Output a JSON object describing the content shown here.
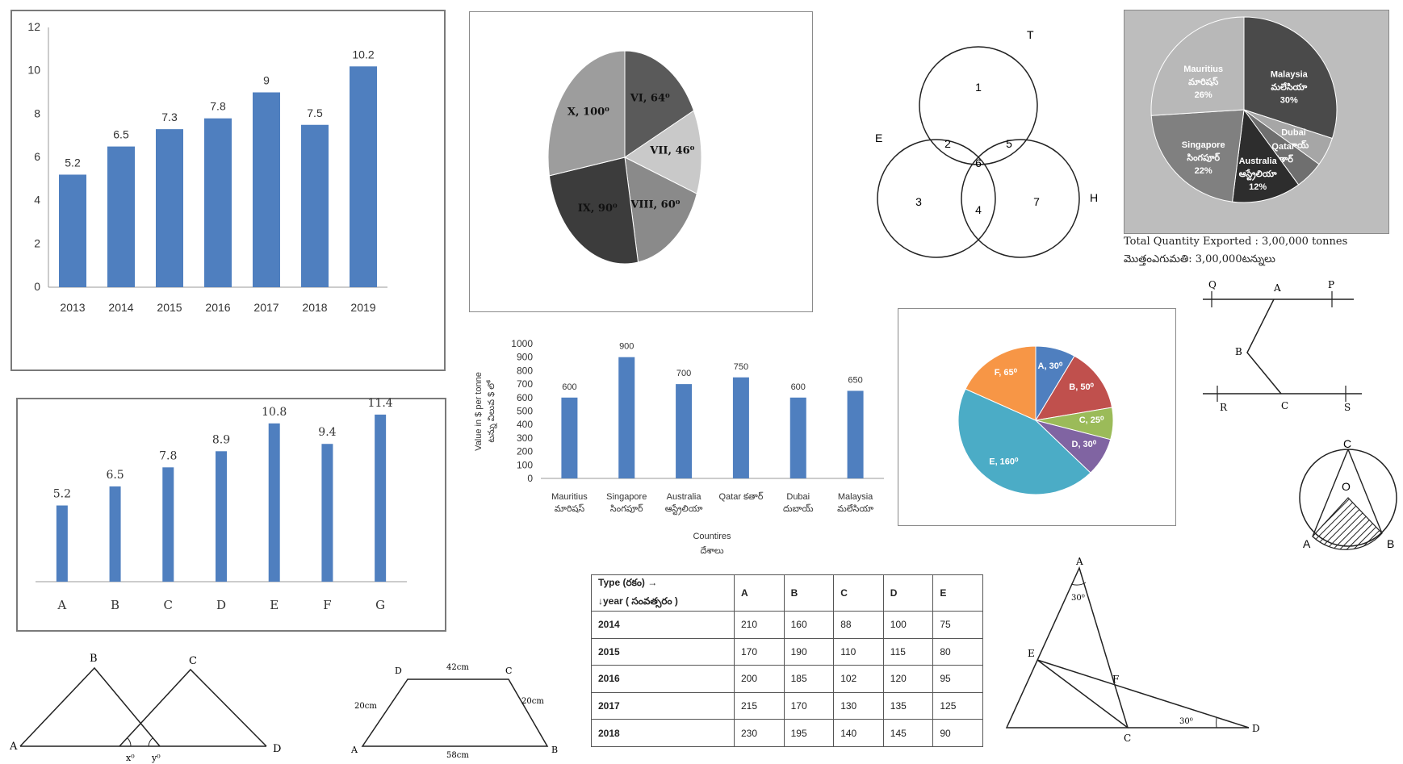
{
  "chart_data": [
    {
      "type": "bar",
      "categories": [
        "2013",
        "2014",
        "2015",
        "2016",
        "2017",
        "2018",
        "2019"
      ],
      "values": [
        5.2,
        6.5,
        7.3,
        7.8,
        9,
        7.5,
        10.2
      ],
      "value_labels": [
        "5.2",
        "6.5",
        "7.3",
        "7.8",
        "9",
        "7.5",
        "10.2"
      ],
      "ylim": [
        0,
        12
      ],
      "yticks": [
        "0",
        "2",
        "4",
        "6",
        "8",
        "10",
        "12"
      ],
      "color": "#4f7fbf"
    },
    {
      "type": "pie",
      "slices": [
        {
          "label": "VI, 64⁰",
          "value": 64,
          "color": "#5a5a5a"
        },
        {
          "label": "VII, 46⁰",
          "value": 46,
          "color": "#c9c9c9"
        },
        {
          "label": "VIII, 60⁰",
          "value": 60,
          "color": "#8a8a8a"
        },
        {
          "label": "IX, 90⁰",
          "value": 90,
          "color": "#3c3c3c"
        },
        {
          "label": "X, 100⁰",
          "value": 100,
          "color": "#9d9d9d"
        }
      ]
    },
    {
      "type": "pie",
      "slices": [
        {
          "label": "Malaysia\nమలేసియా\n30%",
          "value": 30,
          "color": "#4a4a4a"
        },
        {
          "label": "Dubai\nదుబాయ్\n5%",
          "value": 5,
          "color": "#a6a6a6"
        },
        {
          "label": "Qatar\nకతార్\n5%",
          "value": 5,
          "color": "#6f6f6f"
        },
        {
          "label": "Australia\nఆస్ట్రేలియా\n12%",
          "value": 12,
          "color": "#2d2d2d"
        },
        {
          "label": "Singapore\nసింగపూర్\n22%",
          "value": 22,
          "color": "#808080"
        },
        {
          "label": "Mauritius\nమారిషస్\n26%",
          "value": 26,
          "color": "#b8b8b8"
        }
      ],
      "note": "Total Quantity Exported : 3,00,000 tonnes",
      "note_te": "మొత్తంఎగుమతి: 3,00,000టన్నులు"
    },
    {
      "type": "bar",
      "categories": [
        "A",
        "B",
        "C",
        "D",
        "E",
        "F",
        "G"
      ],
      "values": [
        5.2,
        6.5,
        7.8,
        8.9,
        10.8,
        9.4,
        11.4
      ],
      "value_labels": [
        "5.2",
        "6.5",
        "7.8",
        "8.9",
        "10.8",
        "9.4",
        "11.4"
      ],
      "ylim": [
        0,
        12
      ],
      "color": "#4f7fbf"
    },
    {
      "type": "bar",
      "categories": [
        "Mauritius\nమారిషస్",
        "Singapore\nసింగపూర్",
        "Australia\nఆస్ట్రేలియా",
        "Qatar కతార్",
        "Dubai\nదుబాయ్",
        "Malaysia\nమలేసియా"
      ],
      "values": [
        600,
        900,
        700,
        750,
        600,
        650
      ],
      "value_labels": [
        "600",
        "900",
        "700",
        "750",
        "600",
        "650"
      ],
      "ylim": [
        0,
        1000
      ],
      "yticks": [
        "0",
        "100",
        "200",
        "300",
        "400",
        "500",
        "600",
        "700",
        "800",
        "900",
        "1000"
      ],
      "ylabel": "Value in $ per tonne",
      "ylabel_te": "టన్ను విలువ $ లో",
      "xlabel": "Countires",
      "xlabel_te": "దేశాలు",
      "color": "#4f7fbf"
    },
    {
      "type": "pie",
      "slices": [
        {
          "label": "A, 30⁰",
          "value": 30,
          "color": "#4f7fbf"
        },
        {
          "label": "B, 50⁰",
          "value": 50,
          "color": "#c0504d"
        },
        {
          "label": "C, 25⁰",
          "value": 25,
          "color": "#9bbb59"
        },
        {
          "label": "D, 30⁰",
          "value": 30,
          "color": "#8064a2"
        },
        {
          "label": "E, 160⁰",
          "value": 160,
          "color": "#4bacc6"
        },
        {
          "label": "F, 65⁰",
          "value": 65,
          "color": "#f79646"
        }
      ]
    },
    {
      "type": "table",
      "corner_line1": "Type (రకం) →",
      "corner_line2": "↓year ( సంవత్సరం )",
      "columns": [
        "A",
        "B",
        "C",
        "D",
        "E"
      ],
      "rows": [
        {
          "year": "2014",
          "values": [
            "210",
            "160",
            "88",
            "100",
            "75"
          ]
        },
        {
          "year": "2015",
          "values": [
            "170",
            "190",
            "110",
            "115",
            "80"
          ]
        },
        {
          "year": "2016",
          "values": [
            "200",
            "185",
            "102",
            "120",
            "95"
          ]
        },
        {
          "year": "2017",
          "values": [
            "215",
            "170",
            "130",
            "135",
            "125"
          ]
        },
        {
          "year": "2018",
          "values": [
            "230",
            "195",
            "140",
            "145",
            "90"
          ]
        }
      ]
    }
  ],
  "venn": {
    "set_labels": {
      "t": "T",
      "e": "E",
      "h": "H"
    },
    "regions": [
      "1",
      "2",
      "5",
      "6",
      "3",
      "4",
      "7"
    ]
  },
  "geometry": {
    "triangles_left": {
      "a": "A",
      "b": "B",
      "c": "C",
      "d": "D",
      "x": "x⁰",
      "y": "y⁰"
    },
    "trapezium": {
      "a": "A",
      "b": "B",
      "c": "C",
      "d": "D",
      "top": "42cm",
      "bottom": "58cm",
      "left": "20cm",
      "right": "20cm"
    },
    "parallel_lines": {
      "q": "Q",
      "a": "A",
      "p": "P",
      "b": "B",
      "r": "R",
      "c": "C",
      "s": "S"
    },
    "circle": {
      "c": "C",
      "o": "O",
      "a": "A",
      "b": "B"
    },
    "triangle_right": {
      "a": "A",
      "angle_a": "30⁰",
      "e": "E",
      "f": "F",
      "angle_d": "30⁰",
      "c": "C",
      "d": "D"
    }
  }
}
